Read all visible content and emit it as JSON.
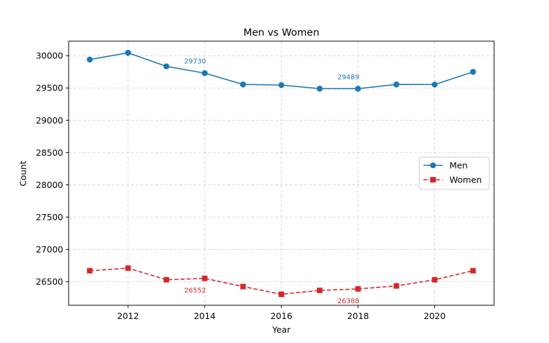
{
  "chart_data": {
    "type": "line",
    "title": "Men vs Women",
    "xlabel": "Year",
    "ylabel": "Count",
    "x": [
      2011,
      2012,
      2013,
      2014,
      2015,
      2016,
      2017,
      2018,
      2019,
      2020,
      2021
    ],
    "xticks": [
      2012,
      2014,
      2016,
      2018,
      2020
    ],
    "yticks": [
      26500,
      27000,
      27500,
      28000,
      28500,
      29000,
      29500,
      30000
    ],
    "xlim": [
      2010.45,
      2021.55
    ],
    "ylim": [
      26135,
      30225
    ],
    "grid": true,
    "legend_position": "center-right",
    "series": [
      {
        "name": "Men",
        "color": "#1f77b4",
        "marker": "circle",
        "linestyle": "solid",
        "values": [
          29940,
          30045,
          29835,
          29730,
          29555,
          29545,
          29490,
          29489,
          29555,
          29553,
          29750
        ],
        "annotations": [
          {
            "x": 2014,
            "text": "29730"
          },
          {
            "x": 2018,
            "text": "29489"
          }
        ]
      },
      {
        "name": "Women",
        "color": "#d62728",
        "marker": "square",
        "linestyle": "dashed",
        "values": [
          26670,
          26710,
          26530,
          26552,
          26425,
          26305,
          26365,
          26388,
          26435,
          26530,
          26670
        ],
        "annotations": [
          {
            "x": 2014,
            "text": "26552"
          },
          {
            "x": 2018,
            "text": "26388"
          }
        ]
      }
    ]
  }
}
